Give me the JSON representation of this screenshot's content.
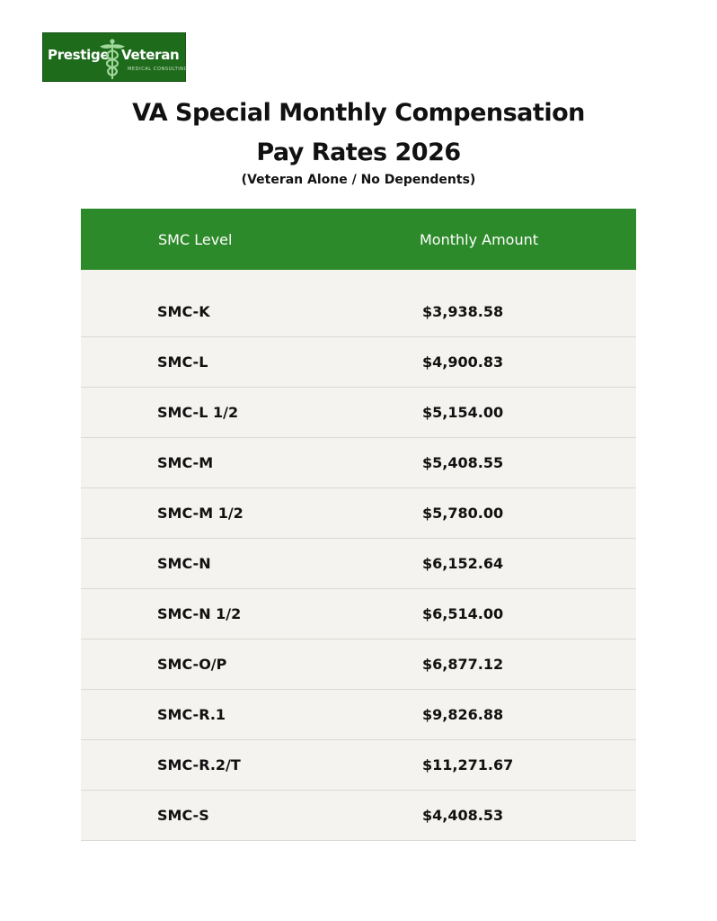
{
  "logo": {
    "word_left": "Prestige",
    "word_right": "Veteran",
    "tagline": "MEDICAL CONSULTING",
    "icon": "caduceus-icon",
    "bg_color": "#1f6b1c"
  },
  "header": {
    "title_line1": "VA Special Monthly Compensation",
    "title_line2": "Pay Rates 2026",
    "subtitle": "(Veteran Alone / No Dependents)"
  },
  "table": {
    "header_color": "#2d8a2a",
    "body_color": "#f5f3ef",
    "columns": [
      "SMC Level",
      "Monthly Amount"
    ],
    "rows": [
      {
        "level": "SMC-K",
        "amount": "$3,938.58"
      },
      {
        "level": "SMC-L",
        "amount": "$4,900.83"
      },
      {
        "level": "SMC-L 1/2",
        "amount": "$5,154.00"
      },
      {
        "level": "SMC-M",
        "amount": "$5,408.55"
      },
      {
        "level": "SMC-M 1/2",
        "amount": "$5,780.00"
      },
      {
        "level": "SMC-N",
        "amount": "$6,152.64"
      },
      {
        "level": "SMC-N 1/2",
        "amount": "$6,514.00"
      },
      {
        "level": "SMC-O/P",
        "amount": "$6,877.12"
      },
      {
        "level": "SMC-R.1",
        "amount": "$9,826.88"
      },
      {
        "level": "SMC-R.2/T",
        "amount": "$11,271.67"
      },
      {
        "level": "SMC-S",
        "amount": "$4,408.53"
      }
    ]
  }
}
